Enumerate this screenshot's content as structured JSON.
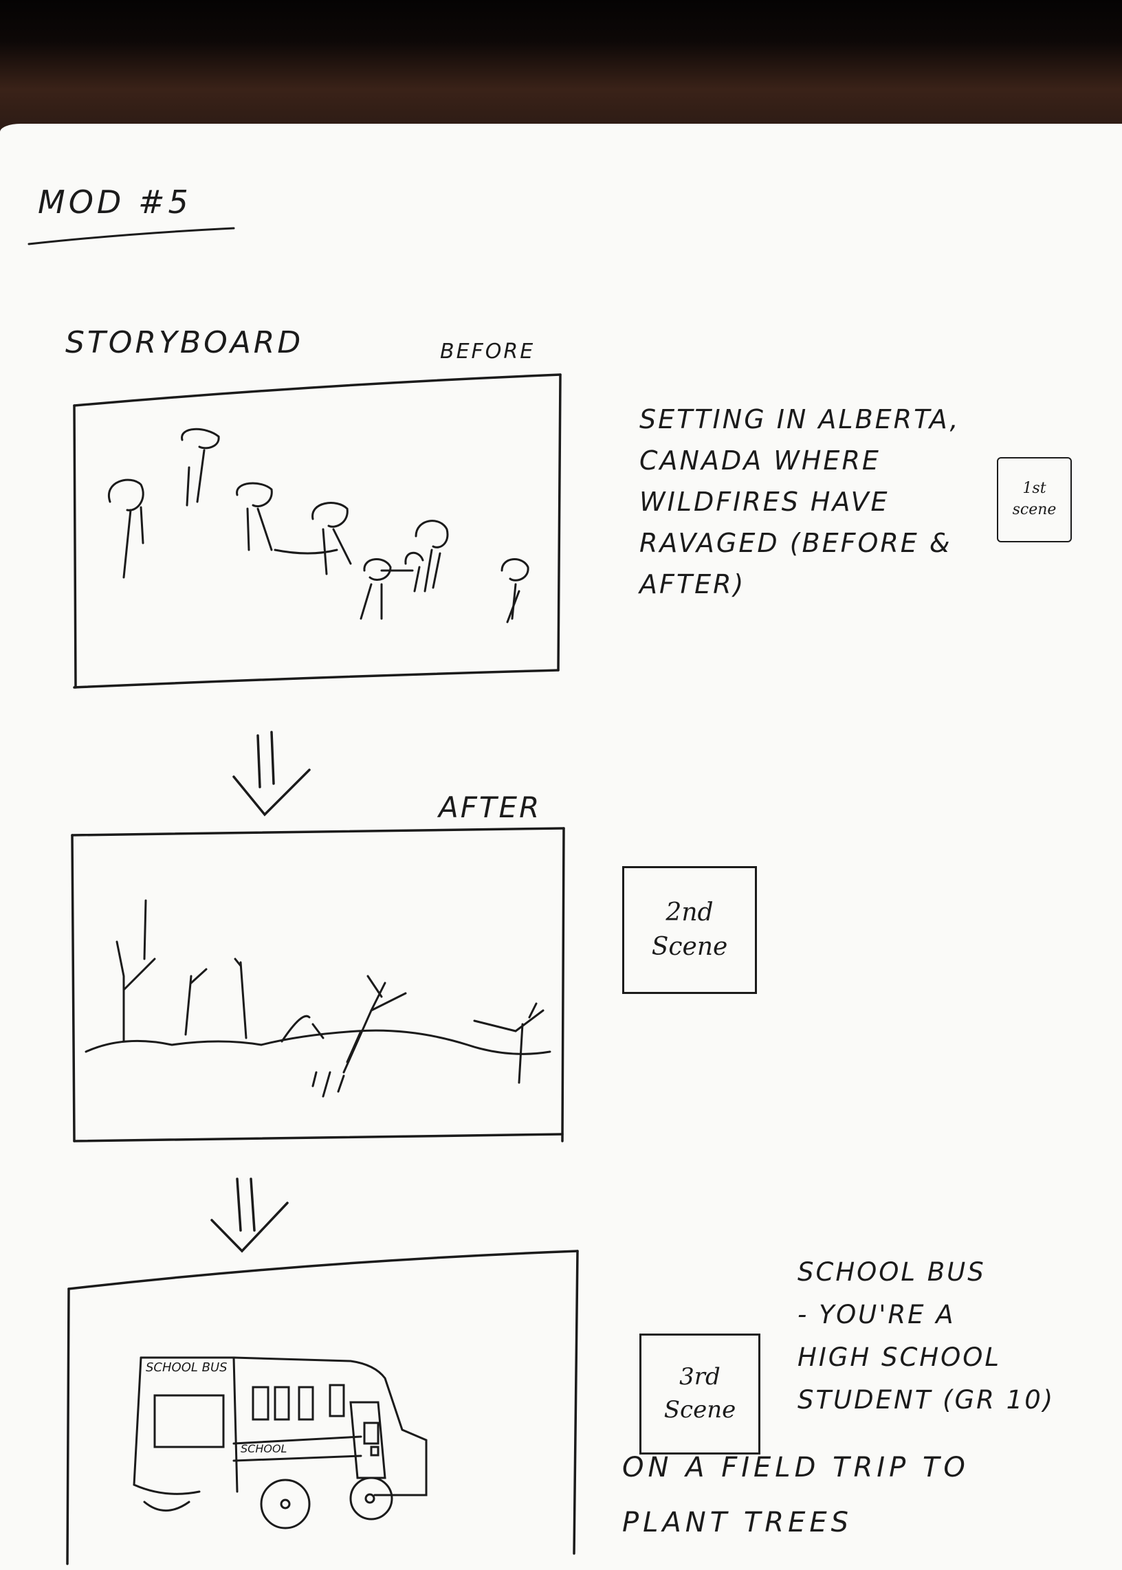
{
  "page": {
    "title": "MOD #5",
    "heading": "STORYBOARD",
    "frames": [
      {
        "label": "BEFORE",
        "scene": [
          "1st",
          "scene"
        ],
        "note": [
          "SETTING IN ALBERTA,",
          "CANADA WHERE",
          "WILDFIRES HAVE",
          "RAVAGED (BEFORE &",
          "AFTER)"
        ]
      },
      {
        "label": "AFTER",
        "scene": [
          "2nd",
          "Scene"
        ]
      },
      {
        "label": "",
        "scene": [
          "3rd",
          "Scene"
        ],
        "bus_sign": "SCHOOL BUS",
        "bus_side": "SCHOOL",
        "note": [
          "SCHOOL BUS",
          "- YOU'RE A",
          "HIGH SCHOOL",
          "STUDENT (GR 10)"
        ],
        "note_b": [
          "ON A FIELD TRIP TO",
          "PLANT TREES"
        ]
      }
    ]
  },
  "colors": {
    "ink": "#1b1b1b",
    "paper": "#fafaf8",
    "background": "#1a1210"
  }
}
